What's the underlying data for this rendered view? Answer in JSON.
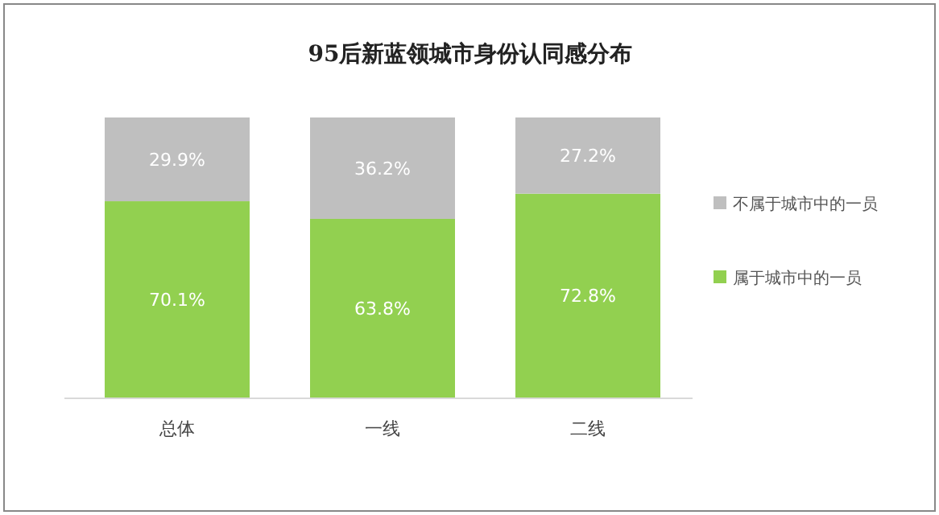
{
  "chart_data": {
    "type": "bar",
    "stacked": true,
    "title": "95后新蓝领城市身份认同感分布",
    "categories": [
      "总体",
      "一线",
      "二线"
    ],
    "legend": "right",
    "series": [
      {
        "name": "属于城市中的一员",
        "color": "#92d050",
        "values": [
          70.1,
          63.8,
          72.8
        ],
        "value_labels": [
          "70.1%",
          "63.8%",
          "72.8%"
        ]
      },
      {
        "name": "不属于城市中的一员",
        "color": "#bfbfbf",
        "values": [
          29.9,
          36.2,
          27.2
        ],
        "value_labels": [
          "29.9%",
          "36.2%",
          "27.2%"
        ]
      }
    ]
  }
}
